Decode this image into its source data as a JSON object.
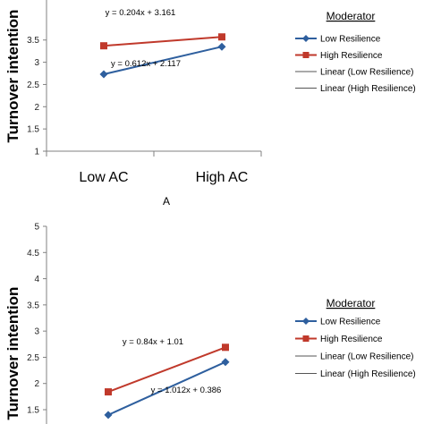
{
  "chart_data": [
    {
      "type": "line",
      "panel_label": "A",
      "ylabel": "Turnover intention",
      "ylim": [
        1,
        4
      ],
      "yticks": [
        "1",
        "1.5",
        "2",
        "2.5",
        "3",
        "3.5"
      ],
      "categories": [
        "Low AC",
        "High AC"
      ],
      "legend": {
        "title": "Moderator",
        "placement": "right",
        "entries": [
          "Low Resilience",
          "High Resilience",
          "Linear (Low Resilience)",
          "Linear (High Resilience)"
        ]
      },
      "series": [
        {
          "name": "Low Resilience",
          "values": [
            2.73,
            3.35
          ],
          "color": "#2e5f9e",
          "marker": "diamond",
          "equation": "y = 0.612x + 2.117"
        },
        {
          "name": "High Resilience",
          "values": [
            3.37,
            3.57
          ],
          "color": "#c0392b",
          "marker": "square",
          "equation": "y = 0.204x + 3.161"
        }
      ]
    },
    {
      "type": "line",
      "panel_label": "",
      "ylabel": "Turnover intention",
      "ylim": [
        1,
        5
      ],
      "yticks": [
        "1.5",
        "2",
        "2.5",
        "3",
        "3.5",
        "4",
        "4.5",
        "5"
      ],
      "categories": [
        "",
        ""
      ],
      "legend": {
        "title": "Moderator",
        "placement": "right",
        "entries": [
          "Low Resilience",
          "High Resilience",
          "Linear (Low Resilience)",
          "Linear (High Resilience)"
        ]
      },
      "series": [
        {
          "name": "Low Resilience",
          "values": [
            1.4,
            2.41
          ],
          "color": "#2e5f9e",
          "marker": "diamond",
          "equation": "y = 1.012x + 0.386"
        },
        {
          "name": "High Resilience",
          "values": [
            1.84,
            2.69
          ],
          "color": "#c0392b",
          "marker": "square",
          "equation": "y = 0.84x + 1.01"
        }
      ]
    }
  ],
  "colors": {
    "low": "#2e5f9e",
    "high": "#c0392b",
    "axis": "#808080",
    "linear": "#555555"
  }
}
